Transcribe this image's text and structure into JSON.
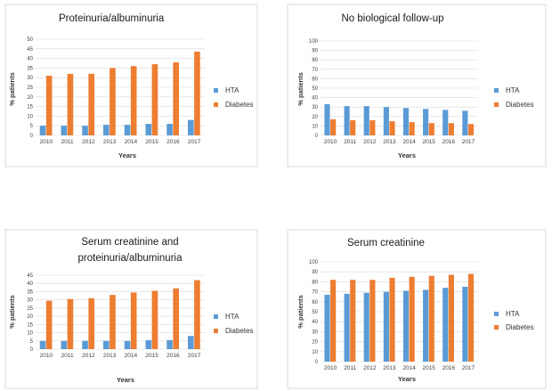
{
  "colors": {
    "hta": "#5b9bd5",
    "diabetes": "#ed7d31"
  },
  "chart_data": [
    {
      "type": "bar",
      "title_lines": [
        "Proteinuria/albuminuria"
      ],
      "xlabel": "Years",
      "ylabel": "% patients",
      "ylim": [
        0,
        50
      ],
      "ytick_step": 5,
      "grid": true,
      "legend_position": "right",
      "categories": [
        "2010",
        "2011",
        "2012",
        "2013",
        "2014",
        "2015",
        "2016",
        "2017"
      ],
      "series": [
        {
          "name": "HTA",
          "values": [
            5,
            5,
            5,
            5.5,
            5.5,
            6,
            6,
            8
          ]
        },
        {
          "name": "Diabetes",
          "values": [
            31,
            32,
            32,
            35,
            36,
            37,
            38,
            43.5
          ]
        }
      ]
    },
    {
      "type": "bar",
      "title_lines": [
        "No biological follow-up"
      ],
      "xlabel": "Years",
      "ylabel": "% patients",
      "ylim": [
        0,
        100
      ],
      "ytick_step": 10,
      "grid": true,
      "legend_position": "right",
      "categories": [
        "2010",
        "2011",
        "2012",
        "2013",
        "2014",
        "2015",
        "2016",
        "2017"
      ],
      "series": [
        {
          "name": "HTA",
          "values": [
            33,
            31,
            31,
            30,
            29,
            28,
            27,
            26
          ]
        },
        {
          "name": "Diabetes",
          "values": [
            17,
            16,
            16,
            15,
            14,
            13,
            13,
            12
          ]
        }
      ]
    },
    {
      "type": "bar",
      "title_lines": [
        "Serum creatinine and",
        "proteinuria/albuminuria"
      ],
      "xlabel": "Years",
      "ylabel": "% patients",
      "ylim": [
        0,
        45
      ],
      "ytick_step": 5,
      "grid": true,
      "legend_position": "right",
      "categories": [
        "2010",
        "2011",
        "2012",
        "2013",
        "2014",
        "2015",
        "2016",
        "2017"
      ],
      "series": [
        {
          "name": "HTA",
          "values": [
            5,
            5,
            5,
            5,
            5,
            5.5,
            5.5,
            8
          ]
        },
        {
          "name": "Diabetes",
          "values": [
            29.5,
            30.5,
            31,
            33,
            34.5,
            35.5,
            37,
            42
          ]
        }
      ]
    },
    {
      "type": "bar",
      "title_lines": [
        "Serum creatinine"
      ],
      "xlabel": "Years",
      "ylabel": "% patients",
      "ylim": [
        0,
        100
      ],
      "ytick_step": 10,
      "grid": true,
      "legend_position": "right",
      "categories": [
        "2010",
        "2011",
        "2012",
        "2013",
        "2014",
        "2015",
        "2016",
        "2017"
      ],
      "series": [
        {
          "name": "HTA",
          "values": [
            67,
            68,
            69,
            70,
            71,
            72,
            74,
            75
          ]
        },
        {
          "name": "Diabetes",
          "values": [
            82,
            82,
            82,
            84,
            85,
            86,
            87,
            88
          ]
        }
      ]
    }
  ]
}
